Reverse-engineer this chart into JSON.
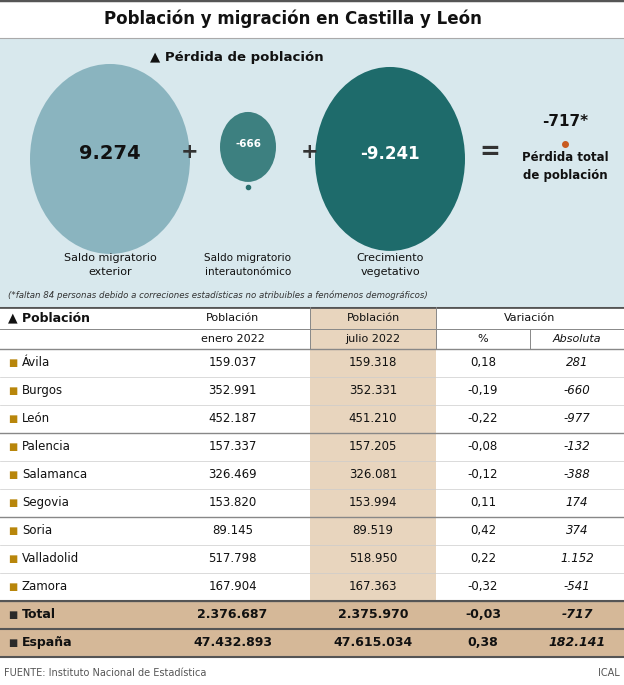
{
  "title": "Población y migración en Castilla y León",
  "top_bg_color": "#d8e8ed",
  "perdida_label": "▲ Pérdida de población",
  "circle1_value": "9.274",
  "circle1_color": "#8ab4bf",
  "circle1_label": "Saldo migratorio\nexterior",
  "circle2_value": "-666",
  "circle2_color": "#3d8080",
  "circle2_label": "Saldo migratorio\ninterautonómico",
  "circle3_value": "-9.241",
  "circle3_color": "#1e6b6b",
  "circle3_label": "Crecimiento\nvegetativo",
  "result_value": "-717*",
  "result_label": "Pérdida total\nde población",
  "footnote": "(*faltan 84 personas debido a correciones estadísticas no atribuibles a fenómenos demográficos)",
  "table_header_col1": "▲ Población",
  "table_header_col2a": "Población",
  "table_header_col2b": "enero 2022",
  "table_header_col3a": "Población",
  "table_header_col3b": "julio 2022",
  "table_header_variacion": "Variación",
  "table_header_pct": "%",
  "table_header_abs": "Absoluta",
  "col3_bg": "#e8d5be",
  "total_bg": "#d5b898",
  "marker_color_normal": "#b8860b",
  "marker_color_total": "#2a2a2a",
  "rows": [
    [
      "Ávila",
      "159.037",
      "159.318",
      "0,18",
      "281"
    ],
    [
      "Burgos",
      "352.991",
      "352.331",
      "-0,19",
      "-660"
    ],
    [
      "León",
      "452.187",
      "451.210",
      "-0,22",
      "-977"
    ],
    [
      "Palencia",
      "157.337",
      "157.205",
      "-0,08",
      "-132"
    ],
    [
      "Salamanca",
      "326.469",
      "326.081",
      "-0,12",
      "-388"
    ],
    [
      "Segovia",
      "153.820",
      "153.994",
      "0,11",
      "174"
    ],
    [
      "Soria",
      "89.145",
      "89.519",
      "0,42",
      "374"
    ],
    [
      "Valladolid",
      "517.798",
      "518.950",
      "0,22",
      "1.152"
    ],
    [
      "Zamora",
      "167.904",
      "167.363",
      "-0,32",
      "-541"
    ]
  ],
  "total_row": [
    "Total",
    "2.376.687",
    "2.375.970",
    "-0,03",
    "-717"
  ],
  "espana_row": [
    "España",
    "47.432.893",
    "47.615.034",
    "0,38",
    "182.141"
  ],
  "source": "FUENTE: Instituto Nacional de Estadística",
  "source_right": "ICAL",
  "group_lines": [
    2,
    5,
    8
  ]
}
